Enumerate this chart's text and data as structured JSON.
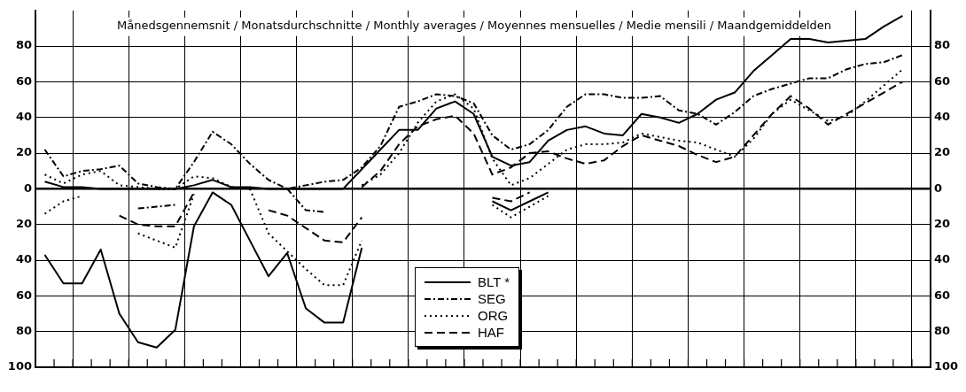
{
  "chart_data": {
    "type": "line",
    "title": "Månedsgennemsnit / Monatsdurchschnitte / Monthly averages / Moyennes mensuelles / Medie mensili / Maandgemiddelden",
    "categories": [
      null,
      null,
      null,
      null,
      null,
      null,
      null,
      null,
      null,
      null,
      null,
      null,
      null,
      null,
      null,
      null,
      null,
      null,
      null,
      null,
      null,
      null,
      null,
      null,
      null,
      null,
      null,
      null,
      null,
      null,
      null,
      null,
      null,
      null,
      null,
      null,
      null,
      null,
      null,
      null,
      null,
      null,
      null,
      null,
      null,
      null,
      null,
      null
    ],
    "series": [
      {
        "name": "BLT *",
        "color": "#000000",
        "line_style": "solid",
        "values": [
          4,
          1,
          1,
          0,
          0,
          0,
          0,
          0,
          2,
          5,
          1,
          1,
          0,
          0,
          0,
          0,
          0,
          11,
          22,
          33,
          33,
          45,
          49,
          42,
          18,
          13,
          15,
          27,
          33,
          35,
          31,
          30,
          42,
          40,
          37,
          42,
          50,
          54,
          66,
          75,
          84,
          84,
          82,
          83,
          84,
          91,
          97,
          null
        ]
      },
      {
        "name": "SEG",
        "color": "#000000",
        "line_style": "dashdot",
        "values": [
          22,
          7,
          10,
          11,
          13,
          3,
          1,
          0,
          15,
          32,
          25,
          14,
          5,
          0,
          2,
          4,
          5,
          12,
          24,
          46,
          49,
          53,
          52,
          48,
          30,
          22,
          25,
          33,
          46,
          53,
          53,
          51,
          51,
          52,
          44,
          42,
          36,
          43,
          52,
          56,
          59,
          62,
          62,
          67,
          70,
          71,
          75,
          null
        ]
      },
      {
        "name": "ORG",
        "color": "#000000",
        "line_style": "dotted",
        "values": [
          8,
          3,
          8,
          10,
          2,
          1,
          0,
          0,
          7,
          6,
          1,
          0,
          null,
          null,
          null,
          null,
          null,
          2,
          8,
          20,
          37,
          49,
          53,
          45,
          17,
          2,
          6,
          14,
          22,
          25,
          25,
          26,
          31,
          29,
          27,
          26,
          22,
          18,
          28,
          42,
          50,
          44,
          38,
          41,
          49,
          58,
          67,
          null
        ]
      },
      {
        "name": "HAF",
        "color": "#000000",
        "line_style": "dashed",
        "values": [
          null,
          null,
          null,
          null,
          null,
          null,
          null,
          null,
          null,
          null,
          null,
          null,
          null,
          null,
          null,
          null,
          null,
          1,
          10,
          25,
          35,
          39,
          41,
          31,
          8,
          12,
          20,
          21,
          17,
          14,
          16,
          24,
          30,
          27,
          24,
          19,
          15,
          18,
          30,
          42,
          52,
          45,
          36,
          42,
          48,
          54,
          60,
          null
        ]
      },
      {
        "color": "#000000",
        "line_style": "solid",
        "values": [
          -37,
          -53,
          -53,
          -34,
          -70,
          -86,
          -89,
          -79,
          -21,
          -2,
          -9,
          -29,
          -49,
          -36,
          -67,
          -75,
          -75,
          -33,
          null,
          null,
          null,
          null,
          null,
          null,
          -7,
          -12,
          -7,
          -2,
          null,
          null,
          null,
          null,
          null,
          null,
          null,
          null,
          null,
          null,
          null,
          null,
          null,
          null,
          null,
          null,
          null,
          null,
          null,
          null
        ]
      },
      {
        "color": "#000000",
        "line_style": "dashdot",
        "values": [
          null,
          null,
          null,
          null,
          null,
          -11,
          -10,
          -9,
          null,
          null,
          null,
          null,
          null,
          0,
          -12,
          -13,
          null,
          null,
          null,
          null,
          null,
          null,
          null,
          null,
          null,
          null,
          null,
          null,
          null,
          null,
          null,
          null,
          null,
          null,
          null,
          null,
          null,
          null,
          null,
          null,
          null,
          null,
          null,
          null,
          null,
          null,
          null,
          null
        ]
      },
      {
        "color": "#000000",
        "line_style": "dotted",
        "values": [
          -14,
          -7,
          -4,
          null,
          null,
          -25,
          -29,
          -33,
          -3,
          null,
          null,
          0,
          -25,
          -35,
          -45,
          -54,
          -54,
          -29,
          null,
          null,
          null,
          null,
          null,
          null,
          -9,
          -16,
          -10,
          -4,
          null,
          null,
          null,
          null,
          null,
          null,
          null,
          null,
          null,
          null,
          null,
          null,
          null,
          null,
          null,
          null,
          null,
          null,
          null,
          null
        ]
      },
      {
        "color": "#000000",
        "line_style": "dashed",
        "values": [
          null,
          null,
          null,
          null,
          -15,
          -20,
          -21,
          -21,
          -2,
          null,
          null,
          null,
          -12,
          -15,
          -22,
          -29,
          -30,
          -16,
          null,
          null,
          null,
          null,
          null,
          null,
          -5,
          -7,
          -2,
          null,
          null,
          null,
          null,
          null,
          null,
          null,
          null,
          null,
          null,
          null,
          null,
          null,
          null,
          null,
          null,
          null,
          null,
          null,
          null,
          null
        ]
      }
    ],
    "ylim": [
      -100,
      100
    ],
    "yticks": [
      {
        "value": -100,
        "label": "100"
      },
      {
        "value": -80,
        "label": "80"
      },
      {
        "value": -60,
        "label": "60"
      },
      {
        "value": -40,
        "label": "40"
      },
      {
        "value": -20,
        "label": "20"
      },
      0,
      20,
      40,
      60,
      80
    ],
    "y2lim": [
      -100,
      100
    ],
    "y2ticks": [
      {
        "value": -100,
        "label": "100"
      },
      {
        "value": -80,
        "label": "80"
      },
      {
        "value": -60,
        "label": "60"
      },
      {
        "value": -40,
        "label": "40"
      },
      {
        "value": -20,
        "label": "20"
      },
      0,
      20,
      40,
      60,
      80
    ],
    "tick_labels": "y",
    "grid": true,
    "legend": "bottom"
  }
}
